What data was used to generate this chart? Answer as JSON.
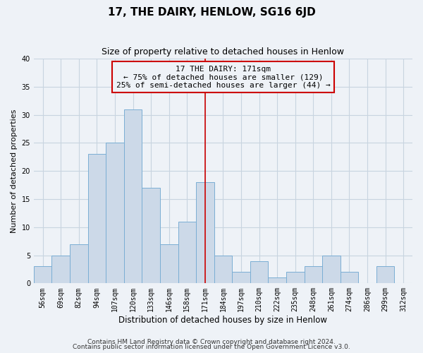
{
  "title": "17, THE DAIRY, HENLOW, SG16 6JD",
  "subtitle": "Size of property relative to detached houses in Henlow",
  "xlabel": "Distribution of detached houses by size in Henlow",
  "ylabel": "Number of detached properties",
  "bar_labels": [
    "56sqm",
    "69sqm",
    "82sqm",
    "94sqm",
    "107sqm",
    "120sqm",
    "133sqm",
    "146sqm",
    "158sqm",
    "171sqm",
    "184sqm",
    "197sqm",
    "210sqm",
    "222sqm",
    "235sqm",
    "248sqm",
    "261sqm",
    "274sqm",
    "286sqm",
    "299sqm",
    "312sqm"
  ],
  "bar_values": [
    3,
    5,
    7,
    23,
    25,
    31,
    17,
    7,
    11,
    18,
    5,
    2,
    4,
    1,
    2,
    3,
    5,
    2,
    0,
    3,
    0
  ],
  "bar_color": "#ccd9e8",
  "bar_edge_color": "#7aaed4",
  "highlight_bar_index": 9,
  "vline_color": "#cc0000",
  "ylim": [
    0,
    40
  ],
  "yticks": [
    0,
    5,
    10,
    15,
    20,
    25,
    30,
    35,
    40
  ],
  "annotation_title": "17 THE DAIRY: 171sqm",
  "annotation_line1": "← 75% of detached houses are smaller (129)",
  "annotation_line2": "25% of semi-detached houses are larger (44) →",
  "annotation_box_edge": "#cc0000",
  "footnote1": "Contains HM Land Registry data © Crown copyright and database right 2024.",
  "footnote2": "Contains public sector information licensed under the Open Government Licence v3.0.",
  "background_color": "#eef2f7",
  "grid_color": "#c8d4e0",
  "title_fontsize": 11,
  "subtitle_fontsize": 9,
  "xlabel_fontsize": 8.5,
  "ylabel_fontsize": 8,
  "tick_fontsize": 7,
  "annotation_fontsize": 8,
  "footnote_fontsize": 6.5
}
